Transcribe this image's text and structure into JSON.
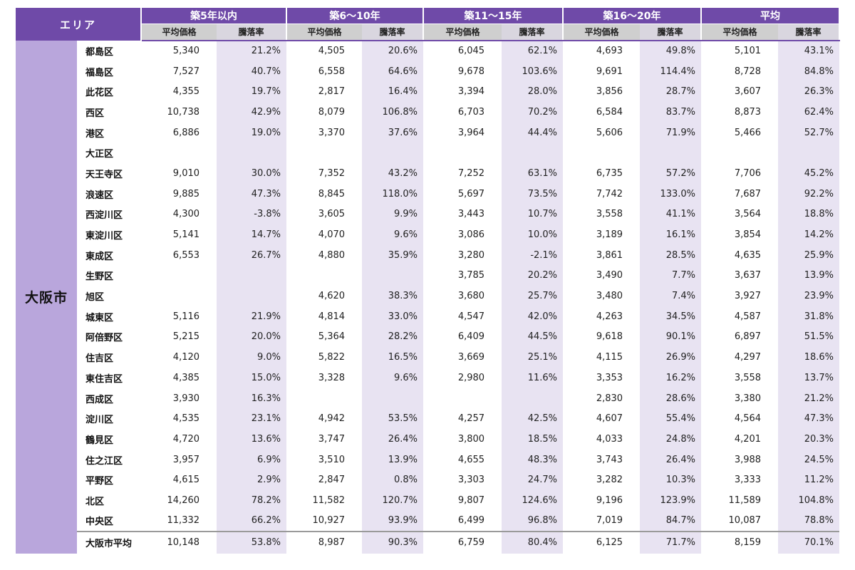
{
  "header": {
    "area_label": "エリア",
    "groups": [
      "築5年以内",
      "築6～10年",
      "築11～15年",
      "築16～20年",
      "平均"
    ],
    "sub_price": "平均価格",
    "sub_rate": "騰落率"
  },
  "city": "大阪市",
  "rows": [
    {
      "ward": "都島区",
      "cells": [
        "5,340",
        "21.2%",
        "4,505",
        "20.6%",
        "6,045",
        "62.1%",
        "4,693",
        "49.8%",
        "5,101",
        "43.1%"
      ]
    },
    {
      "ward": "福島区",
      "cells": [
        "7,527",
        "40.7%",
        "6,558",
        "64.6%",
        "9,678",
        "103.6%",
        "9,691",
        "114.4%",
        "8,728",
        "84.8%"
      ]
    },
    {
      "ward": "此花区",
      "cells": [
        "4,355",
        "19.7%",
        "2,817",
        "16.4%",
        "3,394",
        "28.0%",
        "3,856",
        "28.7%",
        "3,607",
        "26.3%"
      ]
    },
    {
      "ward": "西区",
      "cells": [
        "10,738",
        "42.9%",
        "8,079",
        "106.8%",
        "6,703",
        "70.2%",
        "6,584",
        "83.7%",
        "8,873",
        "62.4%"
      ]
    },
    {
      "ward": "港区",
      "cells": [
        "6,886",
        "19.0%",
        "3,370",
        "37.6%",
        "3,964",
        "44.4%",
        "5,606",
        "71.9%",
        "5,466",
        "52.7%"
      ]
    },
    {
      "ward": "大正区",
      "cells": [
        "",
        "",
        "",
        "",
        "",
        "",
        "",
        "",
        "",
        ""
      ]
    },
    {
      "ward": "天王寺区",
      "cells": [
        "9,010",
        "30.0%",
        "7,352",
        "43.2%",
        "7,252",
        "63.1%",
        "6,735",
        "57.2%",
        "7,706",
        "45.2%"
      ]
    },
    {
      "ward": "浪速区",
      "cells": [
        "9,885",
        "47.3%",
        "8,845",
        "118.0%",
        "5,697",
        "73.5%",
        "7,742",
        "133.0%",
        "7,687",
        "92.2%"
      ]
    },
    {
      "ward": "西淀川区",
      "cells": [
        "4,300",
        "-3.8%",
        "3,605",
        "9.9%",
        "3,443",
        "10.7%",
        "3,558",
        "41.1%",
        "3,564",
        "18.8%"
      ]
    },
    {
      "ward": "東淀川区",
      "cells": [
        "5,141",
        "14.7%",
        "4,070",
        "9.6%",
        "3,086",
        "10.0%",
        "3,189",
        "16.1%",
        "3,854",
        "14.2%"
      ]
    },
    {
      "ward": "東成区",
      "cells": [
        "6,553",
        "26.7%",
        "4,880",
        "35.9%",
        "3,280",
        "-2.1%",
        "3,861",
        "28.5%",
        "4,635",
        "25.9%"
      ]
    },
    {
      "ward": "生野区",
      "cells": [
        "",
        "",
        "",
        "",
        "3,785",
        "20.2%",
        "3,490",
        "7.7%",
        "3,637",
        "13.9%"
      ]
    },
    {
      "ward": "旭区",
      "cells": [
        "",
        "",
        "4,620",
        "38.3%",
        "3,680",
        "25.7%",
        "3,480",
        "7.4%",
        "3,927",
        "23.9%"
      ]
    },
    {
      "ward": "城東区",
      "cells": [
        "5,116",
        "21.9%",
        "4,814",
        "33.0%",
        "4,547",
        "42.0%",
        "4,263",
        "34.5%",
        "4,587",
        "31.8%"
      ]
    },
    {
      "ward": "阿倍野区",
      "cells": [
        "5,215",
        "20.0%",
        "5,364",
        "28.2%",
        "6,409",
        "44.5%",
        "9,618",
        "90.1%",
        "6,897",
        "51.5%"
      ]
    },
    {
      "ward": "住吉区",
      "cells": [
        "4,120",
        "9.0%",
        "5,822",
        "16.5%",
        "3,669",
        "25.1%",
        "4,115",
        "26.9%",
        "4,297",
        "18.6%"
      ]
    },
    {
      "ward": "東住吉区",
      "cells": [
        "4,385",
        "15.0%",
        "3,328",
        "9.6%",
        "2,980",
        "11.6%",
        "3,353",
        "16.2%",
        "3,558",
        "13.7%"
      ]
    },
    {
      "ward": "西成区",
      "cells": [
        "3,930",
        "16.3%",
        "",
        "",
        "",
        "",
        "2,830",
        "28.6%",
        "3,380",
        "21.2%"
      ]
    },
    {
      "ward": "淀川区",
      "cells": [
        "4,535",
        "23.1%",
        "4,942",
        "53.5%",
        "4,257",
        "42.5%",
        "4,607",
        "55.4%",
        "4,564",
        "47.3%"
      ]
    },
    {
      "ward": "鶴見区",
      "cells": [
        "4,720",
        "13.6%",
        "3,747",
        "26.4%",
        "3,800",
        "18.5%",
        "4,033",
        "24.8%",
        "4,201",
        "20.3%"
      ]
    },
    {
      "ward": "住之江区",
      "cells": [
        "3,957",
        "6.9%",
        "3,510",
        "13.9%",
        "4,655",
        "48.3%",
        "3,743",
        "26.4%",
        "3,988",
        "24.5%"
      ]
    },
    {
      "ward": "平野区",
      "cells": [
        "4,615",
        "2.9%",
        "2,847",
        "0.8%",
        "3,303",
        "24.7%",
        "3,282",
        "10.3%",
        "3,333",
        "11.2%"
      ]
    },
    {
      "ward": "北区",
      "cells": [
        "14,260",
        "78.2%",
        "11,582",
        "120.7%",
        "9,807",
        "124.6%",
        "9,196",
        "123.9%",
        "11,589",
        "104.8%"
      ]
    },
    {
      "ward": "中央区",
      "cells": [
        "11,332",
        "66.2%",
        "10,927",
        "93.9%",
        "6,499",
        "96.8%",
        "7,019",
        "84.7%",
        "10,087",
        "78.8%"
      ]
    }
  ],
  "average_row": {
    "ward": "大阪市平均",
    "cells": [
      "10,148",
      "53.8%",
      "8,987",
      "90.3%",
      "6,759",
      "80.4%",
      "6,125",
      "71.7%",
      "8,159",
      "70.1%"
    ]
  },
  "colors": {
    "header": "#6f4aa8",
    "city_column": "#b9a6dc",
    "rate_column": "#e8e3f2",
    "subheader": "#cfcfcf"
  }
}
